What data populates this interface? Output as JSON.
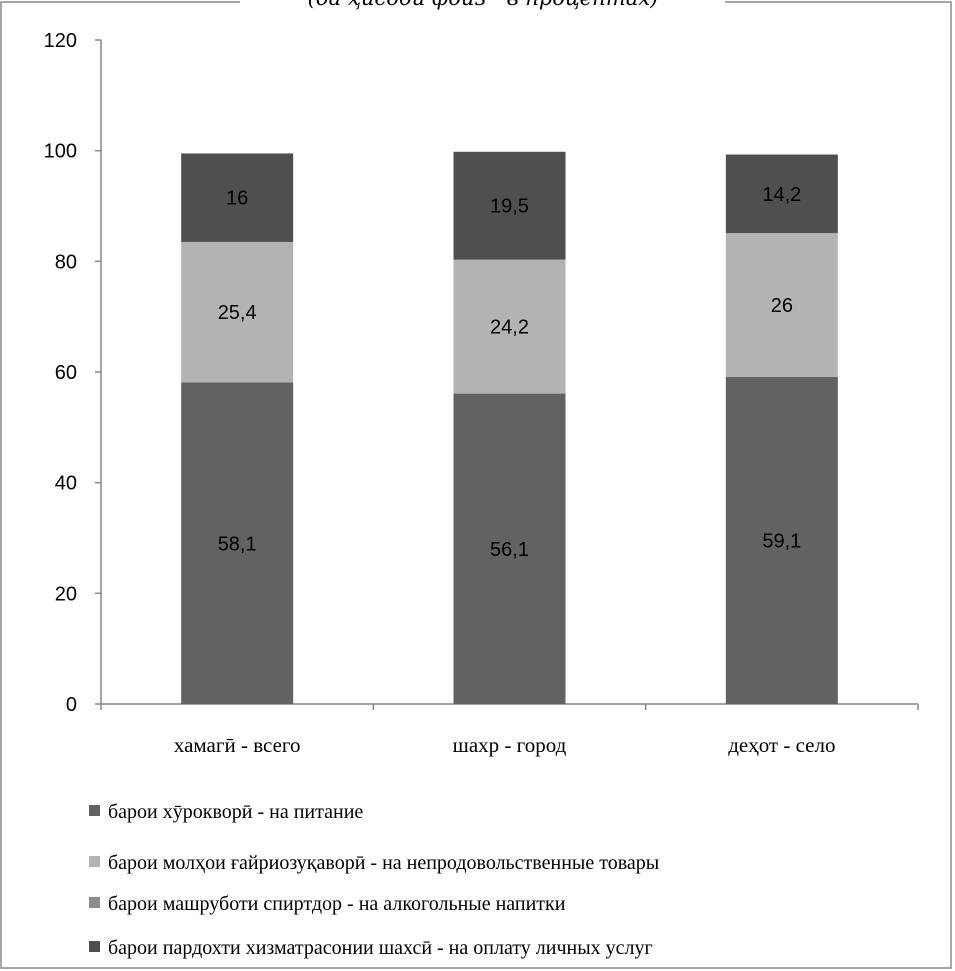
{
  "chart_data": {
    "type": "bar",
    "stacked": true,
    "subtitle": "(ба ҳисоби фоиз - в процентах)",
    "categories": [
      "хамагӣ - всего",
      "шахр - город",
      "деҳот - село"
    ],
    "series": [
      {
        "name": "барои хӯрокворӣ - на питание",
        "values": [
          58.1,
          56.1,
          59.1
        ],
        "labels": [
          "58,1",
          "56,1",
          "59,1"
        ],
        "color": "#626262"
      },
      {
        "name": "барои молҳои ғайриозуқаворӣ - на непродовольственные товары",
        "values": [
          25.4,
          24.2,
          26
        ],
        "labels": [
          "25,4",
          "24,2",
          "26"
        ],
        "color": "#b3b3b3"
      },
      {
        "name": "барои машруботи спиртдор - на алкогольные напитки",
        "values": [
          0,
          0,
          0
        ],
        "labels": [
          "",
          "",
          ""
        ],
        "color": "#8c8c8c"
      },
      {
        "name": "барои пардохти хизматрасонии шахсӣ - на оплату личных услуг",
        "values": [
          16,
          19.5,
          14.2
        ],
        "labels": [
          "16",
          "19,5",
          "14,2"
        ],
        "color": "#4f4f4f"
      }
    ],
    "ylim": [
      0,
      120
    ],
    "yticks": [
      "0",
      "20",
      "40",
      "60",
      "80",
      "100",
      "120"
    ],
    "xlabel": "",
    "ylabel": "",
    "grid": false,
    "legend": "bottom"
  }
}
